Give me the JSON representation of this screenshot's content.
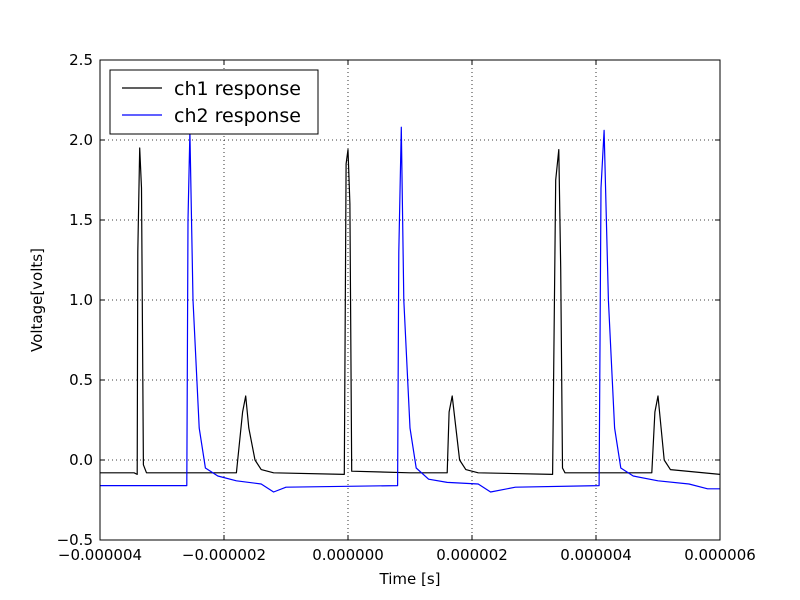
{
  "chart_data": {
    "type": "line",
    "title": "",
    "xlabel": "Time [s]",
    "ylabel": "Voltage[volts]",
    "xlim": [
      -4e-06,
      6e-06
    ],
    "ylim": [
      -0.5,
      2.5
    ],
    "grid": true,
    "legend_position": "top-left",
    "x_ticks": [
      -4e-06,
      -2e-06,
      0.0,
      2e-06,
      4e-06,
      6e-06
    ],
    "x_tick_labels": [
      "−0.000004",
      "−0.000002",
      "0.000000",
      "0.000002",
      "0.000004",
      "0.000006"
    ],
    "y_ticks": [
      -0.5,
      0.0,
      0.5,
      1.0,
      1.5,
      2.0,
      2.5
    ],
    "y_tick_labels": [
      "−0.5",
      "0.0",
      "0.5",
      "1.0",
      "1.5",
      "2.0",
      "2.5"
    ],
    "series": [
      {
        "name": "ch1 response",
        "color": "#000000",
        "points": [
          [
            -4e-06,
            -0.08
          ],
          [
            -3.45e-06,
            -0.08
          ],
          [
            -3.4e-06,
            -0.09
          ],
          [
            -3.39e-06,
            1.3
          ],
          [
            -3.36e-06,
            1.95
          ],
          [
            -3.33e-06,
            1.7
          ],
          [
            -3.3e-06,
            -0.03
          ],
          [
            -3.25e-06,
            -0.08
          ],
          [
            -2.2e-06,
            -0.08
          ],
          [
            -1.8e-06,
            -0.08
          ],
          [
            -1.7e-06,
            0.3
          ],
          [
            -1.65e-06,
            0.4
          ],
          [
            -1.6e-06,
            0.2
          ],
          [
            -1.5e-06,
            0.0
          ],
          [
            -1.4e-06,
            -0.06
          ],
          [
            -1.2e-06,
            -0.08
          ],
          [
            -6e-08,
            -0.09
          ],
          [
            -3e-08,
            1.85
          ],
          [
            0.0,
            1.94
          ],
          [
            3e-08,
            1.6
          ],
          [
            6e-08,
            -0.07
          ],
          [
            1e-06,
            -0.08
          ],
          [
            1.6e-06,
            -0.08
          ],
          [
            1.63e-06,
            0.3
          ],
          [
            1.68e-06,
            0.4
          ],
          [
            1.74e-06,
            0.2
          ],
          [
            1.8e-06,
            0.0
          ],
          [
            1.9e-06,
            -0.06
          ],
          [
            2.1e-06,
            -0.08
          ],
          [
            3.3e-06,
            -0.09
          ],
          [
            3.35e-06,
            1.75
          ],
          [
            3.4e-06,
            1.94
          ],
          [
            3.43e-06,
            1.2
          ],
          [
            3.46e-06,
            -0.05
          ],
          [
            3.5e-06,
            -0.08
          ],
          [
            4.9e-06,
            -0.08
          ],
          [
            4.95e-06,
            0.3
          ],
          [
            5e-06,
            0.4
          ],
          [
            5.05e-06,
            0.2
          ],
          [
            5.1e-06,
            0.0
          ],
          [
            5.2e-06,
            -0.06
          ],
          [
            6e-06,
            -0.09
          ]
        ]
      },
      {
        "name": "ch2 response",
        "color": "#0000ff",
        "points": [
          [
            -4e-06,
            -0.16
          ],
          [
            -2.6e-06,
            -0.16
          ],
          [
            -2.58e-06,
            1.5
          ],
          [
            -2.55e-06,
            2.05
          ],
          [
            -2.5e-06,
            1.0
          ],
          [
            -2.4e-06,
            0.2
          ],
          [
            -2.3e-06,
            -0.05
          ],
          [
            -2.1e-06,
            -0.1
          ],
          [
            -1.8e-06,
            -0.13
          ],
          [
            -1.4e-06,
            -0.15
          ],
          [
            -1.2e-06,
            -0.2
          ],
          [
            -1e-06,
            -0.17
          ],
          [
            8e-07,
            -0.16
          ],
          [
            8.2e-07,
            1.3
          ],
          [
            8.6e-07,
            2.08
          ],
          [
            9e-07,
            1.0
          ],
          [
            1e-06,
            0.2
          ],
          [
            1.1e-06,
            -0.05
          ],
          [
            1.3e-06,
            -0.12
          ],
          [
            1.6e-06,
            -0.14
          ],
          [
            2.1e-06,
            -0.15
          ],
          [
            2.3e-06,
            -0.2
          ],
          [
            2.7e-06,
            -0.17
          ],
          [
            4.05e-06,
            -0.16
          ],
          [
            4.08e-06,
            1.7
          ],
          [
            4.13e-06,
            2.06
          ],
          [
            4.2e-06,
            1.0
          ],
          [
            4.3e-06,
            0.2
          ],
          [
            4.4e-06,
            -0.05
          ],
          [
            4.6e-06,
            -0.1
          ],
          [
            5e-06,
            -0.13
          ],
          [
            5.5e-06,
            -0.15
          ],
          [
            5.8e-06,
            -0.18
          ],
          [
            6e-06,
            -0.18
          ]
        ]
      }
    ]
  }
}
